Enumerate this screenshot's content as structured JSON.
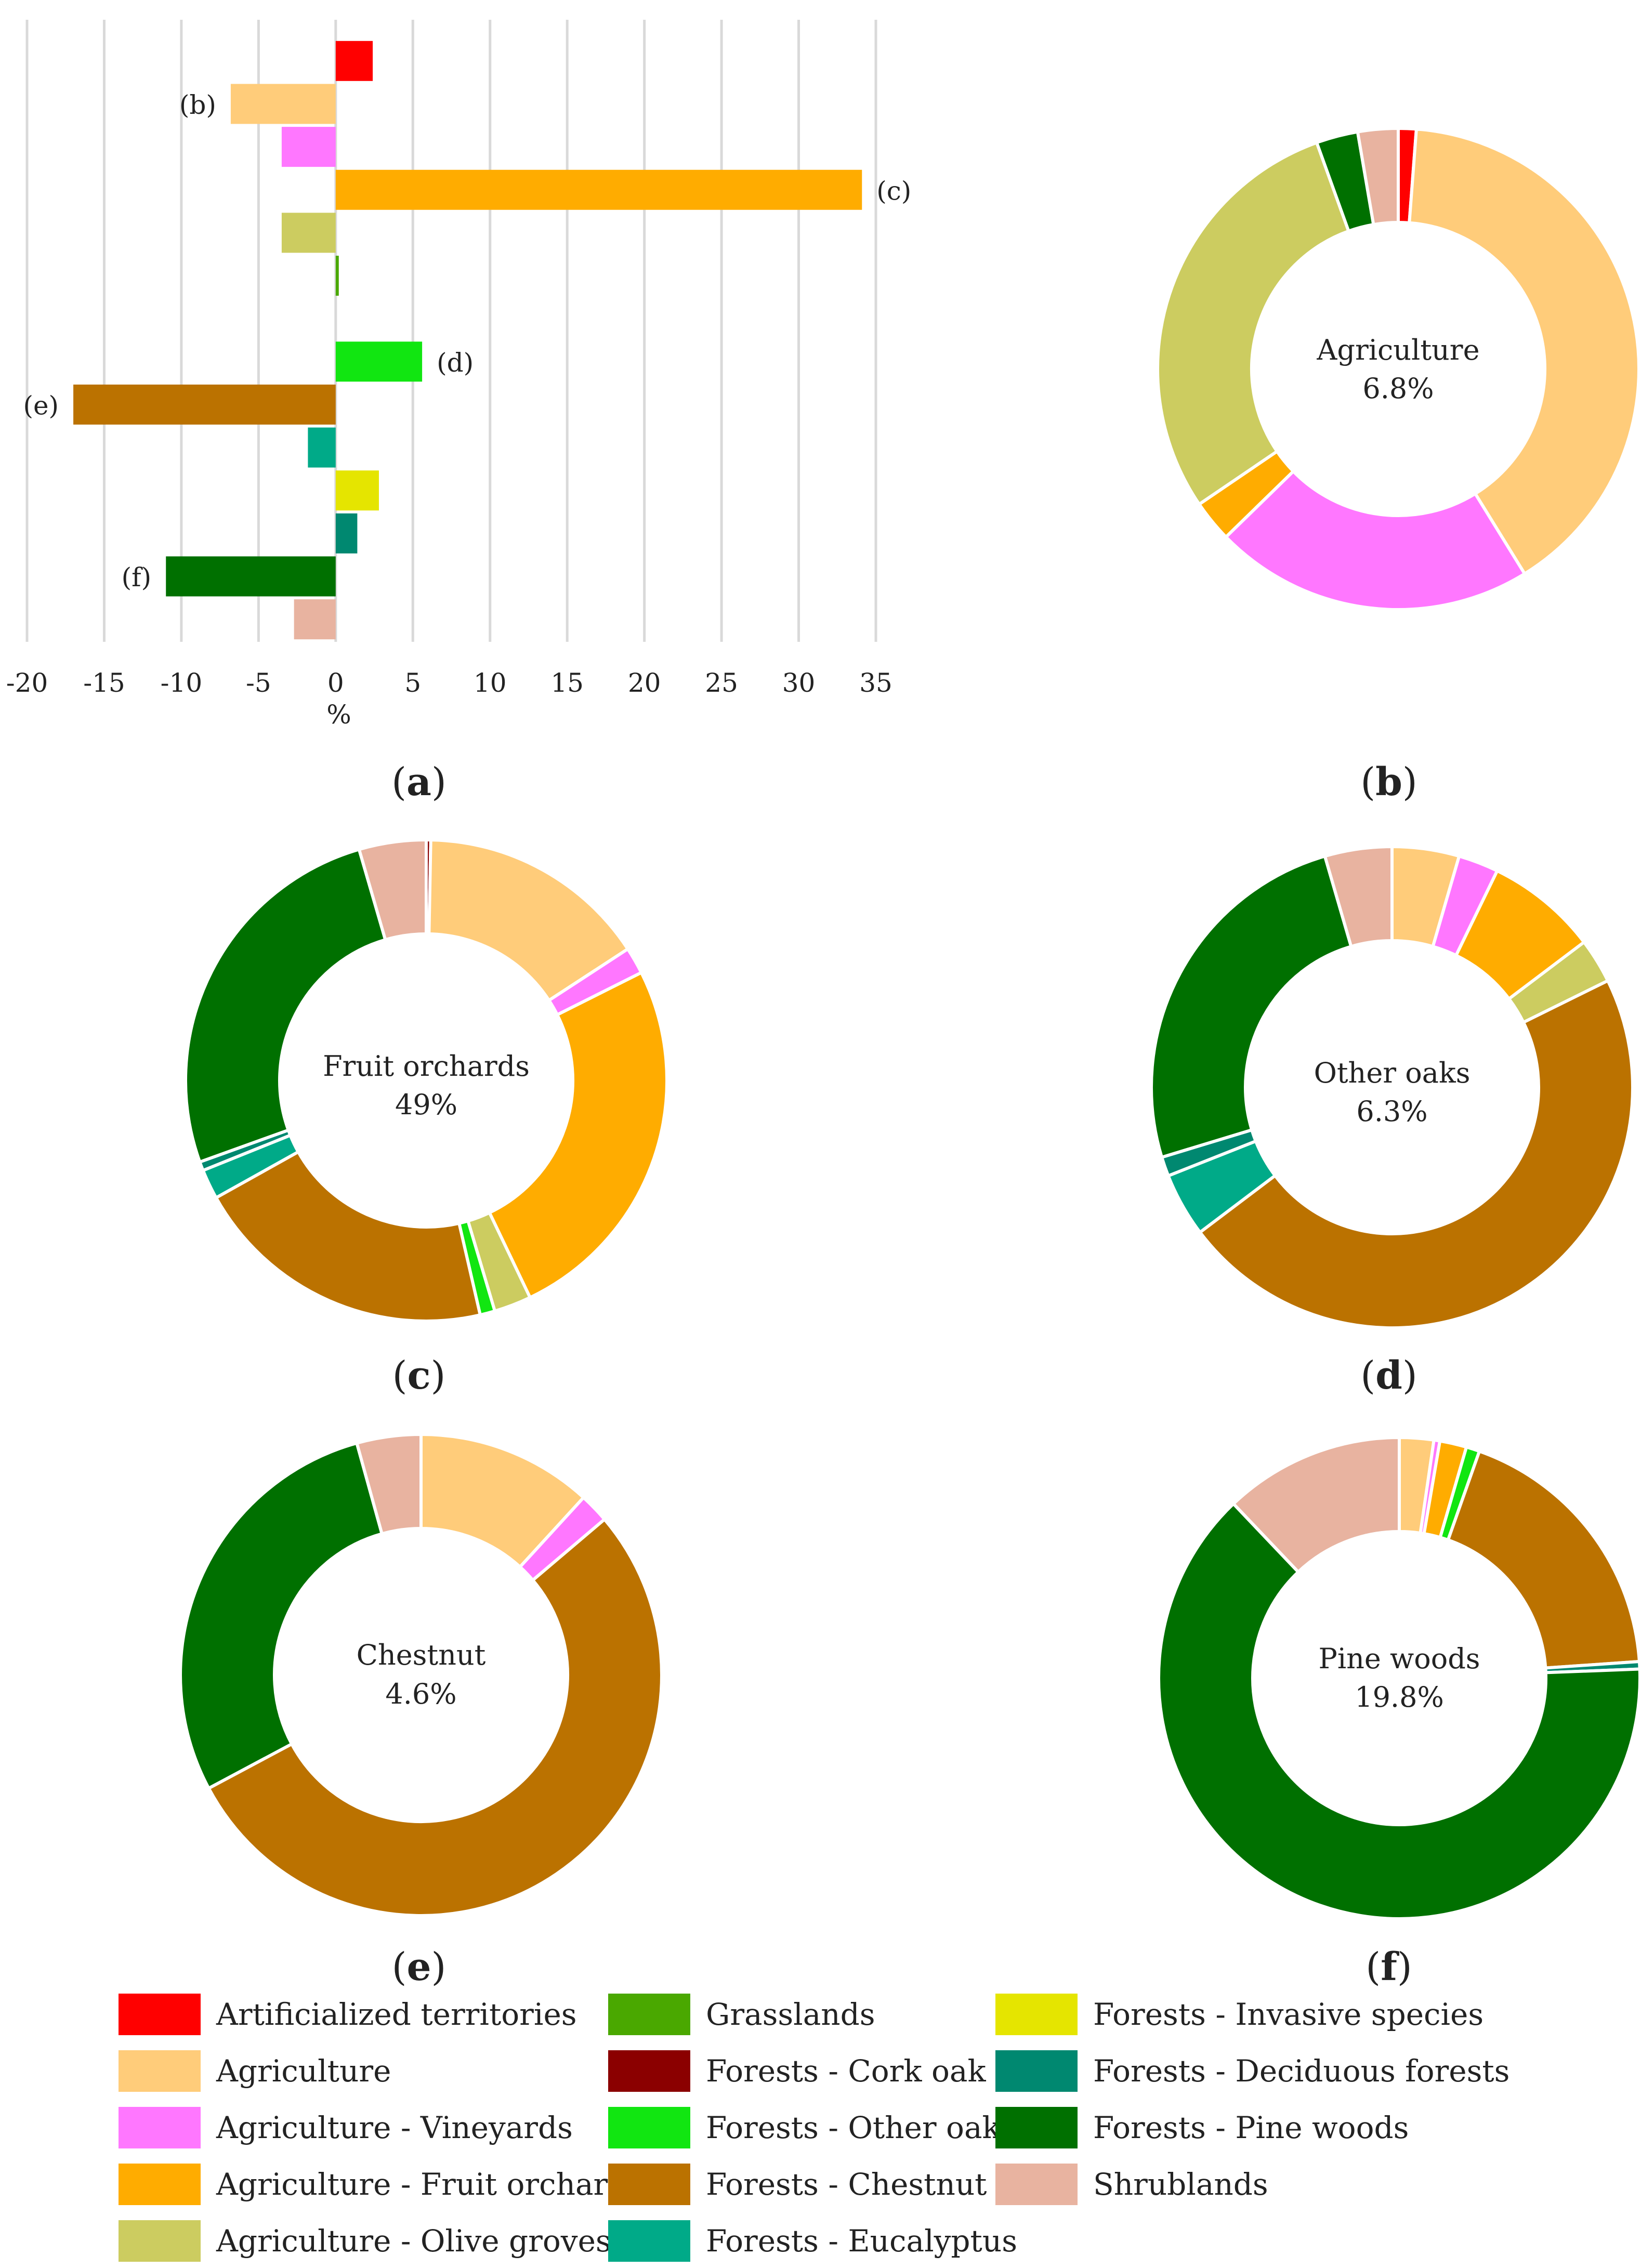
{
  "colors": {
    "artificialized": "#ff0000",
    "agriculture": "#ffcc7a",
    "vineyards": "#ff77ff",
    "fruit_orchards": "#ffac00",
    "olive_groves": "#cccc60",
    "grasslands": "#4aa800",
    "cork_oak": "#8b0000",
    "other_oaks": "#11e611",
    "chestnut": "#bb7200",
    "eucalyptus": "#00aa88",
    "invasive": "#e5e500",
    "deciduous": "#008870",
    "pine_woods": "#007000",
    "shrublands": "#e8b3a0"
  },
  "chart_data": [
    {
      "type": "bar",
      "panel": "a",
      "orientation": "horizontal",
      "panel_label": "a",
      "xlabel": "%",
      "xlim": [
        -20,
        35
      ],
      "x_ticks": [
        "-20",
        "-15",
        "-10",
        "-5",
        "0",
        "5",
        "10",
        "15",
        "20",
        "25",
        "30",
        "35"
      ],
      "categories": [
        "Artificialized territories",
        "Agriculture",
        "Agriculture - Vineyards",
        "Agriculture - Fruit orchards",
        "Agriculture - Olive groves",
        "Grasslands",
        "Forests - Cork oak",
        "Forests - Other oaks",
        "Forests - Chestnut",
        "Forests - Eucalyptus",
        "Forests - Invasive species",
        "Forests - Deciduous forests",
        "Forests - Pine woods",
        "Shrublands"
      ],
      "values": [
        2.4,
        -6.8,
        -3.5,
        34.1,
        -3.5,
        0.2,
        0.0,
        5.6,
        -17.0,
        -1.8,
        2.8,
        1.4,
        -11.0,
        -2.7
      ],
      "annotations": [
        {
          "category": "Agriculture",
          "text": "(b)"
        },
        {
          "category": "Agriculture - Fruit orchards",
          "text": "(c)"
        },
        {
          "category": "Forests - Other oaks",
          "text": "(d)"
        },
        {
          "category": "Forests - Chestnut",
          "text": "(e)"
        },
        {
          "category": "Forests - Pine woods",
          "text": "(f)"
        }
      ]
    },
    {
      "type": "pie",
      "panel": "b",
      "panel_label": "b",
      "title": "Agriculture",
      "subtitle": "6.8%",
      "categories": [
        "Artificialized territories",
        "Agriculture",
        "Agriculture - Vineyards",
        "Agriculture - Fruit orchards",
        "Agriculture - Olive groves",
        "Forests - Pine woods",
        "Shrublands"
      ],
      "values": [
        1.2,
        40.0,
        21.5,
        2.8,
        29.0,
        2.8,
        2.7
      ]
    },
    {
      "type": "pie",
      "panel": "c",
      "panel_label": "c",
      "title": "Fruit orchards",
      "subtitle": "49%",
      "categories": [
        "Forests - Cork oak",
        "Agriculture",
        "Agriculture - Vineyards",
        "Agriculture - Fruit orchards",
        "Agriculture - Olive groves",
        "Forests - Other oaks",
        "Forests - Chestnut",
        "Forests - Eucalyptus",
        "Forests - Deciduous forests",
        "Forests - Pine woods",
        "Shrublands"
      ],
      "values": [
        0.3,
        15.5,
        1.8,
        25.3,
        2.5,
        1.0,
        20.5,
        2.0,
        0.6,
        26.0,
        4.5
      ]
    },
    {
      "type": "pie",
      "panel": "d",
      "panel_label": "d",
      "title": "Other oaks",
      "subtitle": "6.3%",
      "categories": [
        "Agriculture",
        "Agriculture - Vineyards",
        "Agriculture - Fruit orchards",
        "Agriculture - Olive groves",
        "Forests - Chestnut",
        "Forests - Eucalyptus",
        "Forests - Deciduous forests",
        "Forests - Pine woods",
        "Shrublands"
      ],
      "values": [
        4.5,
        2.7,
        7.5,
        3.0,
        47.0,
        4.3,
        1.3,
        25.2,
        4.5
      ]
    },
    {
      "type": "pie",
      "panel": "e",
      "panel_label": "e",
      "title": "Chestnut",
      "subtitle": "4.6%",
      "categories": [
        "Agriculture",
        "Agriculture - Vineyards",
        "Forests - Chestnut",
        "Forests - Pine woods",
        "Shrublands"
      ],
      "values": [
        11.8,
        2.0,
        53.4,
        28.5,
        4.3
      ]
    },
    {
      "type": "pie",
      "panel": "f",
      "panel_label": "f",
      "title": "Pine woods",
      "subtitle": "19.8%",
      "categories": [
        "Agriculture",
        "Agriculture - Vineyards",
        "Agriculture - Fruit orchards",
        "Forests - Other oaks",
        "Forests - Chestnut",
        "Forests - Deciduous forests",
        "Forests - Pine woods",
        "Shrublands"
      ],
      "values": [
        2.3,
        0.4,
        1.8,
        0.9,
        18.5,
        0.5,
        63.5,
        12.1
      ]
    }
  ],
  "legend": [
    {
      "label": "Artificialized territories",
      "key": "artificialized"
    },
    {
      "label": "Agriculture",
      "key": "agriculture"
    },
    {
      "label": "Agriculture - Vineyards",
      "key": "vineyards"
    },
    {
      "label": "Agriculture - Fruit orchards",
      "key": "fruit_orchards"
    },
    {
      "label": "Agriculture - Olive groves",
      "key": "olive_groves"
    },
    {
      "label": "Grasslands",
      "key": "grasslands"
    },
    {
      "label": "Forests - Cork oak",
      "key": "cork_oak"
    },
    {
      "label": "Forests - Other oaks",
      "key": "other_oaks"
    },
    {
      "label": "Forests - Chestnut",
      "key": "chestnut"
    },
    {
      "label": "Forests - Eucalyptus",
      "key": "eucalyptus"
    },
    {
      "label": "Forests - Invasive species",
      "key": "invasive"
    },
    {
      "label": "Forests - Deciduous forests",
      "key": "deciduous"
    },
    {
      "label": "Forests - Pine woods",
      "key": "pine_woods"
    },
    {
      "label": "Shrublands",
      "key": "shrublands"
    }
  ]
}
